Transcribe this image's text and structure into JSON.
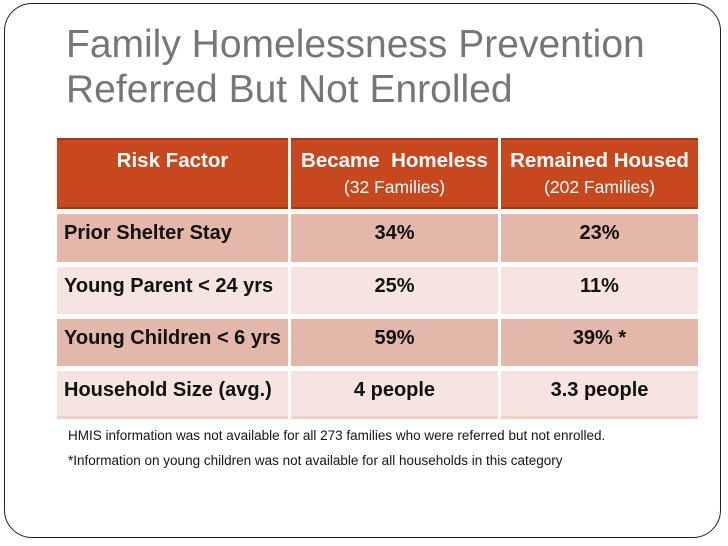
{
  "slide": {
    "title": {
      "line1": "Family Homelessness Prevention",
      "line2": "Referred But Not Enrolled"
    }
  },
  "table": {
    "columns": [
      {
        "title": "Risk Factor",
        "subtitle": ""
      },
      {
        "title": "Became  Homeless",
        "subtitle": "(32 Families)"
      },
      {
        "title": "Remained Housed",
        "subtitle": "(202 Families)"
      }
    ],
    "rows": [
      {
        "label": "Prior Shelter Stay",
        "became_homeless": "34%",
        "remained_housed": "23%"
      },
      {
        "label": "Young Parent < 24 yrs",
        "became_homeless": "25%",
        "remained_housed": "11%"
      },
      {
        "label": "Young Children < 6 yrs",
        "became_homeless": "59%",
        "remained_housed": "39% *"
      },
      {
        "label": "Household Size (avg.)",
        "became_homeless": "4 people",
        "remained_housed": "3.3 people"
      }
    ]
  },
  "footnotes": {
    "line1": "HMIS information was not available for all 273 families who were referred but not enrolled.",
    "line2": "*Information on young children was not available for all households in this category"
  },
  "colors": {
    "header_bg": "#C7481E",
    "header_border": "#A03A16",
    "header_text": "#FFFFFF",
    "row_dark": "#E4B7AB",
    "row_light": "#F5E4DF",
    "body_text": "#111111",
    "title_text": "#767676",
    "slide_border": "#202020",
    "table_bottom_line": "#EED2CA"
  }
}
